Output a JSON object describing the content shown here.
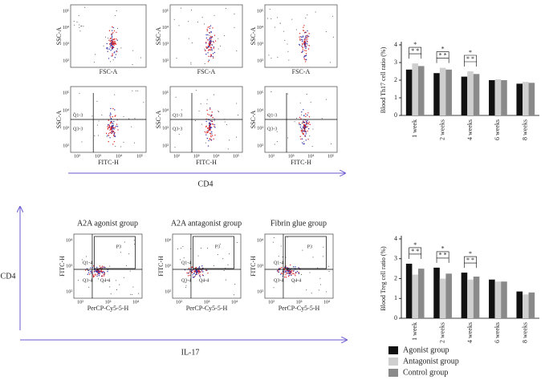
{
  "chart_data": [
    {
      "type": "bar",
      "ylabel": "Blood Th17 cell ratio (%)",
      "categories": [
        "1 week",
        "2 weeks",
        "4 weeks",
        "6 weeks",
        "8 weeks"
      ],
      "series": [
        {
          "name": "Agonist group",
          "color": "#111111",
          "values": [
            2.6,
            2.4,
            2.2,
            2.0,
            1.8
          ]
        },
        {
          "name": "Antagonist group",
          "color": "#cfcfcf",
          "values": [
            2.95,
            2.7,
            2.5,
            2.05,
            1.9
          ]
        },
        {
          "name": "Control group",
          "color": "#8a8a8a",
          "values": [
            2.8,
            2.6,
            2.35,
            2.0,
            1.85
          ]
        }
      ],
      "annotations": [
        [
          "*",
          "* *"
        ],
        [
          "*",
          "* *"
        ],
        [
          "*",
          "* *"
        ],
        null,
        null
      ],
      "ylim": [
        0,
        4
      ],
      "yticks": [
        0,
        1,
        2,
        3,
        4
      ]
    },
    {
      "type": "bar",
      "ylabel": "Blood Treg cell ratio (%)",
      "categories": [
        "1 week",
        "2 weeks",
        "4 weeks",
        "6 weeks",
        "8 weeks"
      ],
      "series": [
        {
          "name": "Agonist group",
          "color": "#111111",
          "values": [
            2.75,
            2.55,
            2.3,
            1.95,
            1.35
          ]
        },
        {
          "name": "Antagonist group",
          "color": "#cfcfcf",
          "values": [
            2.2,
            2.0,
            1.95,
            1.85,
            1.2
          ]
        },
        {
          "name": "Control group",
          "color": "#8a8a8a",
          "values": [
            2.5,
            2.25,
            2.1,
            1.85,
            1.3
          ]
        }
      ],
      "annotations": [
        [
          "*",
          "* *"
        ],
        [
          "*",
          "* *"
        ],
        [
          "*",
          "* *"
        ],
        null,
        null
      ],
      "ylim": [
        0,
        4
      ],
      "yticks": [
        0,
        1,
        2,
        3,
        4
      ]
    }
  ],
  "flow_top": [
    {
      "ylabel": "SSC-A",
      "xlabel": "FSC-A",
      "yticks": [
        "10²",
        "10³",
        "10⁴",
        "10⁵"
      ]
    },
    {
      "ylabel": "SSC-A",
      "xlabel": "FSC-A",
      "yticks": [
        "10²",
        "10³",
        "10⁴",
        "10⁵"
      ]
    },
    {
      "ylabel": "SSC-A",
      "xlabel": "FSC-A",
      "yticks": [
        "10²",
        "10³",
        "10⁴",
        "10⁵"
      ]
    },
    {
      "ylabel": "SSC-A",
      "xlabel": "FITC-H",
      "yticks": [
        "10²",
        "10³",
        "10⁴",
        "10⁵"
      ],
      "xticks": [
        "10²",
        "10³",
        "10⁴",
        "10⁵"
      ],
      "gates": [
        "Q1-3",
        "Q3-3"
      ]
    },
    {
      "ylabel": "SSC-A",
      "xlabel": "FITC-H",
      "yticks": [
        "10²",
        "10³",
        "10⁴",
        "10⁵"
      ],
      "xticks": [
        "10²",
        "10³",
        "10⁴",
        "10⁵"
      ],
      "gates": [
        "Q1-3",
        "Q3-3"
      ]
    },
    {
      "ylabel": "SSC-A",
      "xlabel": "FITC-H",
      "yticks": [
        "10²",
        "10³",
        "10⁴",
        "10⁵"
      ],
      "xticks": [
        "10²",
        "10³",
        "10⁴",
        "10⁵"
      ],
      "gates": [
        "Q1-3",
        "Q3-3"
      ]
    }
  ],
  "flow_bottom": [
    {
      "title": "A2A agonist group",
      "ylabel": "FITC-H",
      "xlabel": "PerCP-Cy5-5-H",
      "yticks": [
        "10²",
        "10³",
        "10⁴"
      ],
      "xticks": [
        "10²",
        "10³",
        "10⁴"
      ],
      "gates": [
        "Q1-4",
        "P3",
        "Q3-4",
        "Q4-4"
      ]
    },
    {
      "title": "A2A antagonist group",
      "ylabel": "FITC-H",
      "xlabel": "PerCP-Cy5-5-H",
      "yticks": [
        "10²",
        "10³",
        "10⁴"
      ],
      "xticks": [
        "10²",
        "10³",
        "10⁴"
      ],
      "gates": [
        "Q1-4",
        "P3",
        "Q3-4",
        "Q4-4"
      ]
    },
    {
      "title": "Fibrin glue group",
      "ylabel": "FITC-H",
      "xlabel": "PerCP-Cy5-5-H",
      "yticks": [
        "10²",
        "10³",
        "10⁴"
      ],
      "xticks": [
        "10²",
        "10³",
        "10⁴"
      ],
      "gates": [
        "Q1-4",
        "P3",
        "Q3-4",
        "Q4-4"
      ]
    }
  ],
  "arrows": {
    "top_x": "CD4",
    "left_y": "CD4",
    "bottom_x": "IL-17"
  }
}
